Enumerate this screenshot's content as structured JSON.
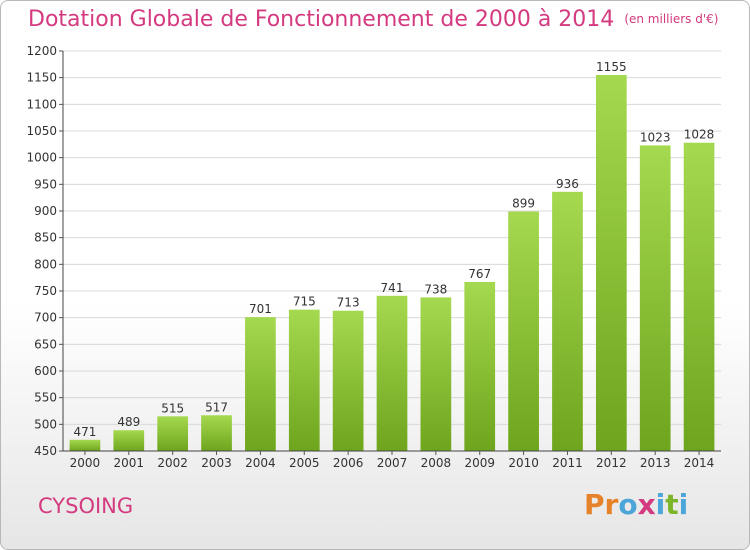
{
  "header": {
    "title": "Dotation Globale de Fonctionnement de 2000 à 2014",
    "unit": "(en milliers d'€)"
  },
  "footer": {
    "city": "CYSOING",
    "logo_text": "Proxiti",
    "logo_colors": [
      "#e6832a",
      "#e6832a",
      "#4da6d9",
      "#d43a7f",
      "#4da6d9",
      "#7ab52a",
      "#4da6d9"
    ]
  },
  "colors": {
    "bar_light": "#a5d94f",
    "bar_dark": "#6ea51d",
    "title": "#d43a7f",
    "grid": "#d8d8d8"
  },
  "chart_data": {
    "type": "bar",
    "title": "Dotation Globale de Fonctionnement de 2000 à 2014",
    "subtitle": "(en milliers d'€)",
    "xlabel": "",
    "ylabel": "",
    "categories": [
      "2000",
      "2001",
      "2002",
      "2003",
      "2004",
      "2005",
      "2006",
      "2007",
      "2008",
      "2009",
      "2010",
      "2011",
      "2012",
      "2013",
      "2014"
    ],
    "values": [
      471,
      489,
      515,
      517,
      701,
      715,
      713,
      741,
      738,
      767,
      899,
      936,
      1155,
      1023,
      1028
    ],
    "ylim": [
      450,
      1200
    ],
    "yticks": [
      450,
      500,
      550,
      600,
      650,
      700,
      750,
      800,
      850,
      900,
      950,
      1000,
      1050,
      1100,
      1150,
      1200
    ],
    "grid": true,
    "legend": "none"
  }
}
